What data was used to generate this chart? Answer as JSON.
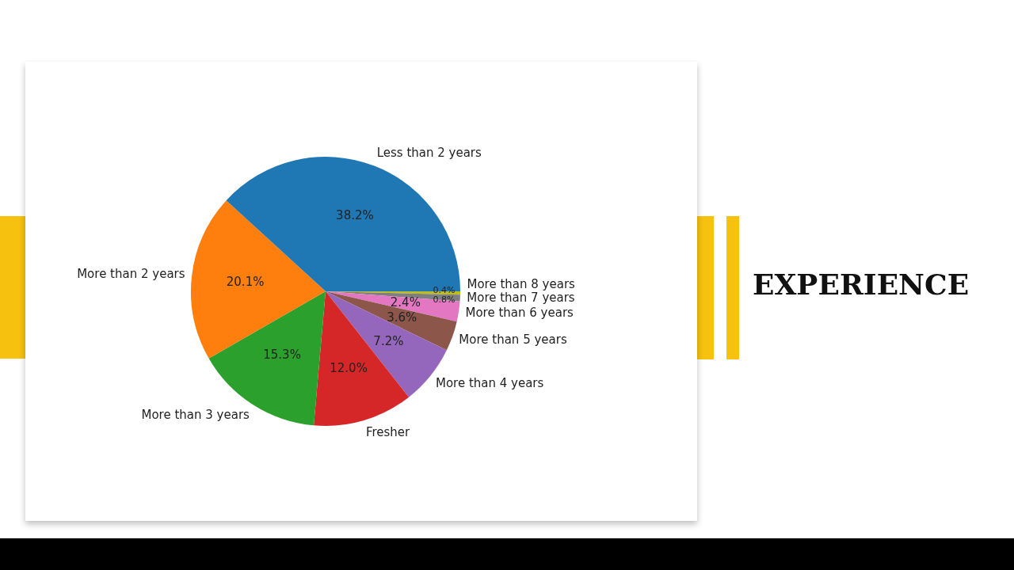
{
  "chart_data": {
    "type": "pie",
    "title": "EXPERIENCE",
    "categories": [
      "Less than 2 years",
      "More than 2 years",
      "More than 3 years",
      "Fresher",
      "More than 4 years",
      "More than 5 years",
      "More than 6 years",
      "More than 7 years",
      "More than 8 years"
    ],
    "values": [
      38.2,
      20.1,
      15.3,
      12.0,
      7.2,
      3.6,
      2.4,
      0.8,
      0.4
    ],
    "colors": [
      "#1f77b4",
      "#ff7f0e",
      "#2ca02c",
      "#d62728",
      "#9467bd",
      "#8c564b",
      "#e377c2",
      "#7f7f7f",
      "#bcbd22"
    ],
    "value_labels": [
      "38.2%",
      "20.1%",
      "15.3%",
      "12.0%",
      "7.2%",
      "3.6%",
      "2.4%",
      "0.8%",
      "0.4%"
    ],
    "legend": false
  }
}
